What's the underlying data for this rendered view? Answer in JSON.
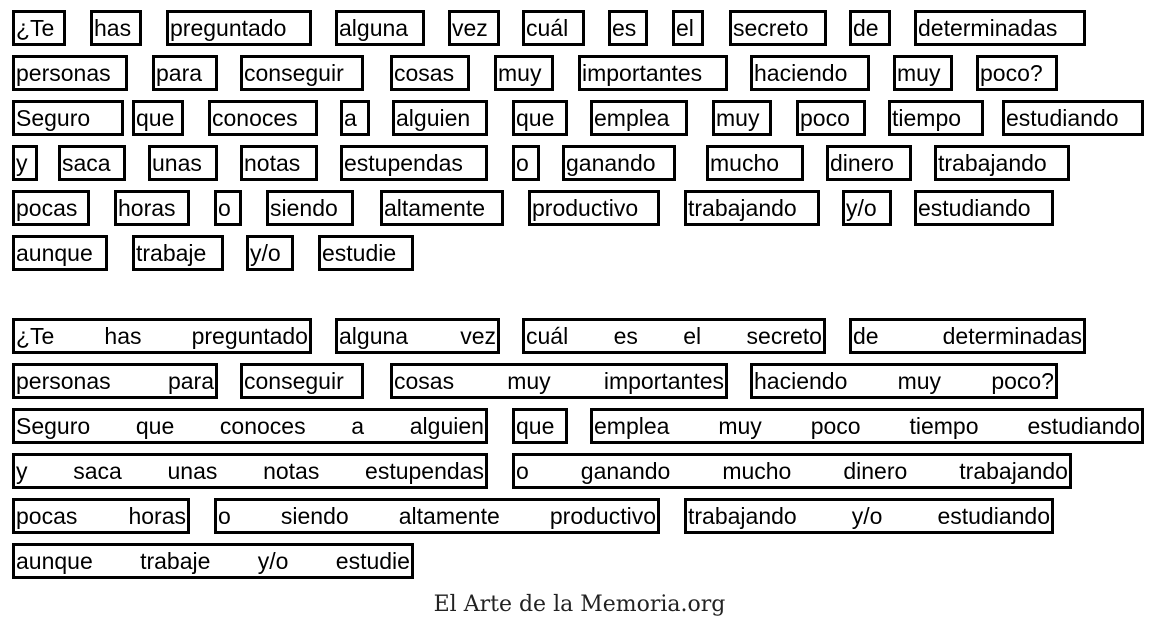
{
  "section1": {
    "lines": [
      [
        [
          "¿Te"
        ],
        [
          "has"
        ],
        [
          "preguntado"
        ],
        [
          "alguna"
        ],
        [
          "vez"
        ],
        [
          "cuál"
        ],
        [
          "es"
        ],
        [
          "el"
        ],
        [
          "secreto"
        ],
        [
          "de"
        ],
        [
          "determinadas"
        ]
      ],
      [
        [
          "personas"
        ],
        [
          "para"
        ],
        [
          "conseguir"
        ],
        [
          "cosas"
        ],
        [
          "muy"
        ],
        [
          "importantes"
        ],
        [
          "haciendo"
        ],
        [
          "muy"
        ],
        [
          "poco?"
        ]
      ],
      [
        [
          "Seguro"
        ],
        [
          "que"
        ],
        [
          "conoces"
        ],
        [
          "a"
        ],
        [
          "alguien"
        ],
        [
          "que"
        ],
        [
          "emplea"
        ],
        [
          "muy"
        ],
        [
          "poco"
        ],
        [
          "tiempo"
        ],
        [
          "estudiando"
        ]
      ],
      [
        [
          "y"
        ],
        [
          "saca"
        ],
        [
          "unas"
        ],
        [
          "notas"
        ],
        [
          "estupendas"
        ],
        [
          "o"
        ],
        [
          "ganando"
        ],
        [
          "mucho"
        ],
        [
          "dinero"
        ],
        [
          "trabajando"
        ]
      ],
      [
        [
          "pocas"
        ],
        [
          "horas"
        ],
        [
          "o"
        ],
        [
          "siendo"
        ],
        [
          "altamente"
        ],
        [
          "productivo"
        ],
        [
          "trabajando"
        ],
        [
          "y/o"
        ],
        [
          "estudiando"
        ]
      ],
      [
        [
          "aunque"
        ],
        [
          "trabaje"
        ],
        [
          "y/o"
        ],
        [
          "estudie"
        ]
      ]
    ]
  },
  "section2": {
    "lines": [
      [
        [
          "¿Te",
          "has",
          "preguntado"
        ],
        [
          "alguna",
          "vez"
        ],
        [
          "cuál",
          "es",
          "el",
          "secreto"
        ],
        [
          "de",
          "determinadas"
        ]
      ],
      [
        [
          "personas",
          "para"
        ],
        [
          "conseguir"
        ],
        [
          "cosas",
          "muy",
          "importantes"
        ],
        [
          "haciendo",
          "muy",
          "poco?"
        ]
      ],
      [
        [
          "Seguro",
          "que",
          "conoces",
          "a",
          "alguien"
        ],
        [
          "que"
        ],
        [
          "emplea",
          "muy",
          "poco",
          "tiempo",
          "estudiando"
        ]
      ],
      [
        [
          "y",
          "saca",
          "unas",
          "notas",
          "estupendas"
        ],
        [
          "o",
          "ganando",
          "mucho",
          "dinero",
          "trabajando"
        ]
      ],
      [
        [
          "pocas",
          "horas"
        ],
        [
          "o",
          "siendo",
          "altamente",
          "productivo"
        ],
        [
          "trabajando",
          "y/o",
          "estudiando"
        ]
      ],
      [
        [
          "aunque",
          "trabaje",
          "y/o",
          "estudie"
        ]
      ]
    ]
  },
  "footer": {
    "credit": "El Arte de la Memoria.org"
  }
}
